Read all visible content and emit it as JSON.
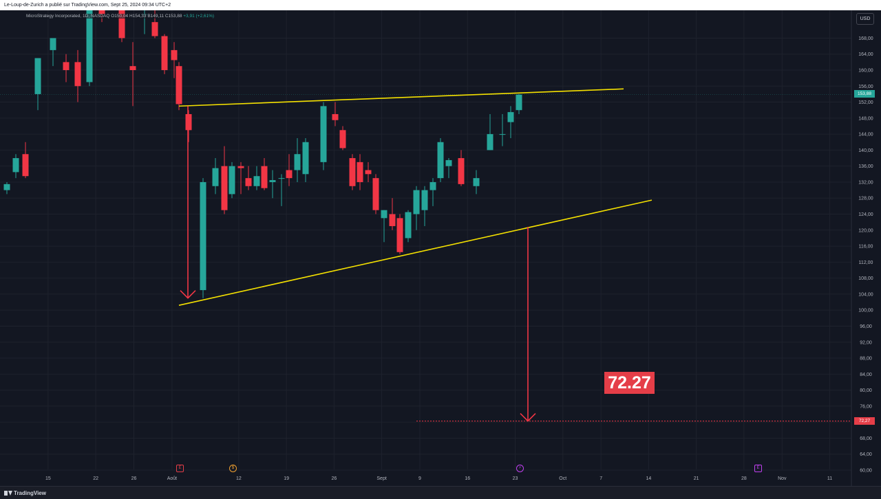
{
  "header": {
    "published_text": "Le-Loup-de-Zurich a publié sur TradingView.com, Sept 25, 2024 09:34 UTC+2"
  },
  "legend": {
    "symbol": "MicroStrategy Incorporated, 1D, NASDAQ",
    "ohlc": "O150,04 H154,33 B149,11 C153,88",
    "change": "+3,91 (+2,61%)"
  },
  "currency_button": "USD",
  "target_label": "72.27",
  "price_tags": {
    "last": "153,88",
    "target": "72,27"
  },
  "events": {
    "earnings1": "E",
    "dividend": "$",
    "split": "⚡",
    "earnings2": "E"
  },
  "footer": {
    "brand": "TradingView"
  },
  "colors": {
    "up": "#26a69a",
    "down": "#f23645",
    "trendline": "#f5e100",
    "arrow": "#f23645",
    "background": "#131722",
    "grid": "#1e222d"
  },
  "chart_data": {
    "type": "candlestick",
    "ylim": [
      58,
      174
    ],
    "yticks": [
      "60,00",
      "64,00",
      "68,00",
      "72,00",
      "76,00",
      "80,00",
      "84,00",
      "88,00",
      "92,00",
      "96,00",
      "100,00",
      "104,00",
      "108,00",
      "112,00",
      "116,00",
      "120,00",
      "124,00",
      "128,00",
      "132,00",
      "136,00",
      "140,00",
      "144,00",
      "148,00",
      "152,00",
      "156,00",
      "160,00",
      "164,00",
      "168,00"
    ],
    "xticks": [
      {
        "label": "15",
        "day": 1
      },
      {
        "label": "22",
        "day": 6
      },
      {
        "label": "26",
        "day": 10
      },
      {
        "label": "Août",
        "day": 14
      },
      {
        "label": "12",
        "day": 21
      },
      {
        "label": "19",
        "day": 26
      },
      {
        "label": "26",
        "day": 31
      },
      {
        "label": "Sept",
        "day": 36
      },
      {
        "label": "9",
        "day": 40
      },
      {
        "label": "16",
        "day": 45
      },
      {
        "label": "23",
        "day": 50
      },
      {
        "label": "Oct",
        "day": 55
      },
      {
        "label": "7",
        "day": 59
      },
      {
        "label": "14",
        "day": 64
      },
      {
        "label": "21",
        "day": 69
      },
      {
        "label": "28",
        "day": 74
      },
      {
        "label": "Nov",
        "day": 78
      },
      {
        "label": "11",
        "day": 83
      }
    ],
    "candles": [
      {
        "o": 130,
        "h": 132,
        "l": 129,
        "c": 131.5
      },
      {
        "o": 134.5,
        "h": 139,
        "l": 133,
        "c": 138
      },
      {
        "o": 139,
        "h": 142,
        "l": 133,
        "c": 133.5
      },
      {
        "o": 154,
        "h": 163,
        "l": 150,
        "c": 163
      },
      {
        "o": 165,
        "h": 168,
        "l": 161,
        "c": 168
      },
      {
        "o": 162,
        "h": 164,
        "l": 157,
        "c": 160
      },
      {
        "o": 162,
        "h": 165,
        "l": 152,
        "c": 156
      },
      {
        "o": 157,
        "h": 177,
        "l": 156,
        "c": 177
      },
      {
        "o": 182,
        "h": 184,
        "l": 172,
        "c": 174
      },
      {
        "o": 175,
        "h": 177,
        "l": 167,
        "c": 168
      },
      {
        "o": 161,
        "h": 167,
        "l": 151,
        "c": 160
      },
      {
        "o": 174,
        "h": 178,
        "l": 169,
        "c": 174
      },
      {
        "o": 172,
        "h": 175,
        "l": 168,
        "c": 168.5
      },
      {
        "o": 168.5,
        "h": 169,
        "l": 159,
        "c": 160
      },
      {
        "o": 165,
        "h": 167,
        "l": 158,
        "c": 162.5
      },
      {
        "o": 161,
        "h": 162,
        "l": 150,
        "c": 151.5
      },
      {
        "o": 149,
        "h": 150,
        "l": 142,
        "c": 145
      },
      {
        "o": 105,
        "h": 133,
        "l": 103,
        "c": 132
      },
      {
        "o": 131,
        "h": 138,
        "l": 129,
        "c": 135.5
      },
      {
        "o": 136,
        "h": 141,
        "l": 124,
        "c": 125
      },
      {
        "o": 129,
        "h": 137,
        "l": 128,
        "c": 136
      },
      {
        "o": 136,
        "h": 137,
        "l": 129,
        "c": 135.5
      },
      {
        "o": 133,
        "h": 136,
        "l": 130,
        "c": 131
      },
      {
        "o": 131,
        "h": 136,
        "l": 130,
        "c": 133.5
      },
      {
        "o": 136,
        "h": 138,
        "l": 130,
        "c": 130.5
      },
      {
        "o": 132,
        "h": 135,
        "l": 128,
        "c": 132.5
      },
      {
        "o": 133,
        "h": 134,
        "l": 126,
        "c": 133
      },
      {
        "o": 135,
        "h": 139,
        "l": 131,
        "c": 133
      },
      {
        "o": 135,
        "h": 143,
        "l": 132,
        "c": 139
      },
      {
        "o": 134,
        "h": 143,
        "l": 132,
        "c": 142
      },
      {
        "o": 137,
        "h": 152,
        "l": 135,
        "c": 151
      },
      {
        "o": 149,
        "h": 152,
        "l": 146,
        "c": 147.5
      },
      {
        "o": 145,
        "h": 146,
        "l": 140,
        "c": 140.5
      },
      {
        "o": 138,
        "h": 139,
        "l": 130,
        "c": 131
      },
      {
        "o": 137,
        "h": 139,
        "l": 130,
        "c": 132
      },
      {
        "o": 135,
        "h": 137,
        "l": 132,
        "c": 134
      },
      {
        "o": 133,
        "h": 134,
        "l": 124,
        "c": 125
      },
      {
        "o": 123,
        "h": 125,
        "l": 117,
        "c": 125
      },
      {
        "o": 124,
        "h": 128,
        "l": 120,
        "c": 121
      },
      {
        "o": 123,
        "h": 124,
        "l": 114,
        "c": 114.5
      },
      {
        "o": 118,
        "h": 125,
        "l": 117,
        "c": 124.5
      },
      {
        "o": 124,
        "h": 131,
        "l": 120,
        "c": 130
      },
      {
        "o": 125,
        "h": 131,
        "l": 121,
        "c": 130
      },
      {
        "o": 130,
        "h": 133,
        "l": 126,
        "c": 132
      },
      {
        "o": 133,
        "h": 143,
        "l": 132,
        "c": 142
      },
      {
        "o": 136,
        "h": 138,
        "l": 133,
        "c": 137.5
      },
      {
        "o": 138,
        "h": 140,
        "l": 131,
        "c": 131.5
      },
      {
        "o": 131,
        "h": 135,
        "l": 129,
        "c": 133
      },
      {
        "o": 140,
        "h": 149,
        "l": 140,
        "c": 144
      },
      {
        "o": 144,
        "h": 149,
        "l": 141,
        "c": 144
      },
      {
        "o": 147,
        "h": 151,
        "l": 143,
        "c": 149.5
      },
      {
        "o": 150,
        "h": 154,
        "l": 149,
        "c": 153.88
      }
    ],
    "candle_days": [
      0,
      1,
      2,
      3,
      4,
      5,
      6,
      7,
      8,
      9,
      10,
      11,
      12,
      13,
      14,
      15,
      16,
      17,
      18,
      19,
      20,
      21,
      22,
      23,
      24,
      25,
      26,
      27,
      28,
      29,
      30,
      31,
      32,
      33,
      34,
      35,
      36,
      37,
      38,
      39,
      40,
      41,
      42,
      43,
      44,
      45,
      46,
      47,
      48,
      49,
      50,
      51
    ],
    "trendlines": [
      {
        "from": {
          "day": 14,
          "price": 151
        },
        "to": {
          "day": 44.5,
          "price": 155.3
        }
      },
      {
        "from": {
          "day": 14,
          "price": 101.2
        },
        "to": {
          "day": 47,
          "price": 127.5
        }
      }
    ],
    "arrows": [
      {
        "day": 15,
        "from_price": 151,
        "to_price": 103
      },
      {
        "day": 41.5,
        "from_price": 120.8,
        "to_price": 72.27
      }
    ],
    "target_price": 72.27,
    "last_price": 153.88
  }
}
